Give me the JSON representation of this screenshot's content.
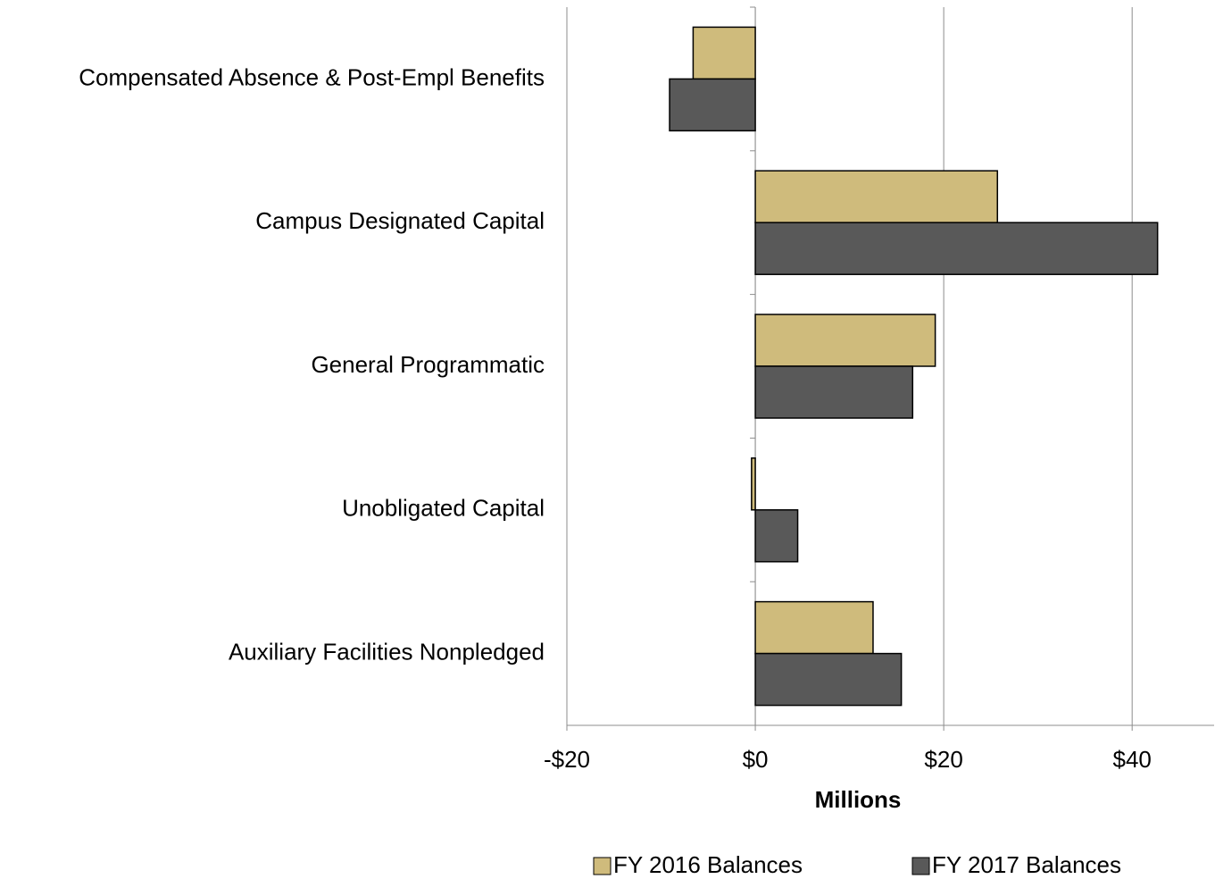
{
  "chart_data": {
    "type": "bar",
    "orientation": "horizontal",
    "categories": [
      "Compensated Absence & Post-Empl Benefits",
      "Campus Designated Capital",
      "General Programmatic",
      "Unobligated Capital",
      "Auxiliary Facilities Nonpledged"
    ],
    "series": [
      {
        "name": "FY 2016 Balances",
        "color": "#cfbb7c",
        "values": [
          -6.6,
          25.7,
          19.1,
          -0.4,
          12.5
        ]
      },
      {
        "name": "FY 2017 Balances",
        "color": "#595959",
        "values": [
          -9.1,
          42.7,
          16.7,
          4.5,
          15.5
        ]
      }
    ],
    "xlabel": "Millions",
    "xlim": [
      -20,
      48.7
    ],
    "xticks": [
      {
        "value": -20,
        "label": "-$20"
      },
      {
        "value": 0,
        "label": "$0"
      },
      {
        "value": 20,
        "label": "$20"
      },
      {
        "value": 40,
        "label": "$40"
      }
    ],
    "grid": true,
    "legend": "bottom"
  }
}
